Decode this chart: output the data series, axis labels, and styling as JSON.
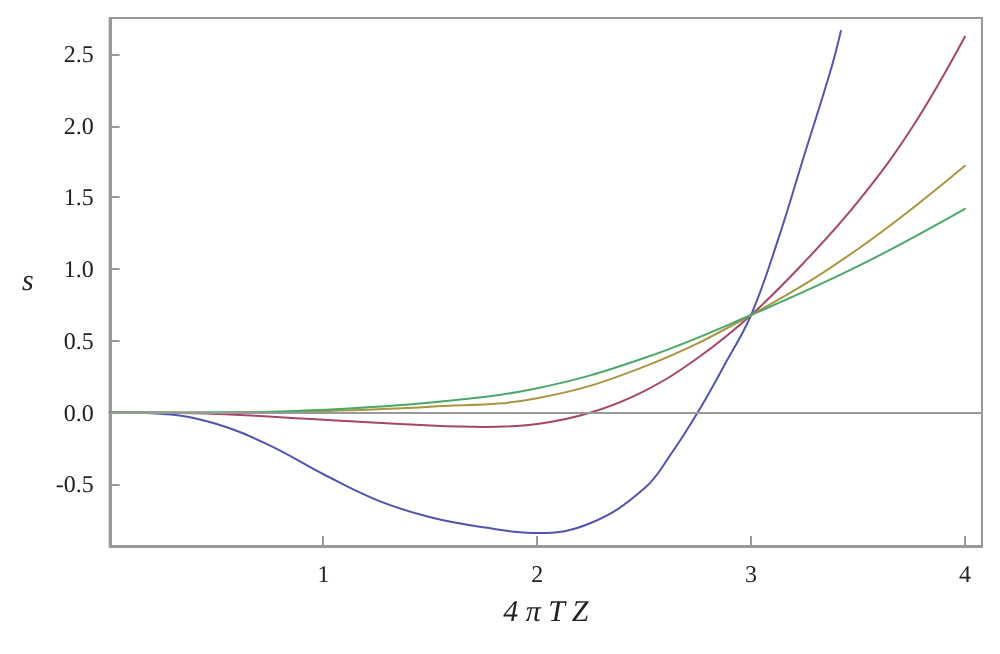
{
  "chart_data": {
    "type": "line",
    "xlabel": "4 π T Z",
    "ylabel": "s",
    "xlim": [
      0,
      4.08
    ],
    "ylim": [
      -0.93,
      2.75
    ],
    "xticks": [
      1,
      2,
      3,
      4
    ],
    "yticks": [
      {
        "value": -0.5,
        "label": "-0.5"
      },
      {
        "value": 0,
        "label": "0.0"
      },
      {
        "value": 0.5,
        "label": "0.5"
      },
      {
        "value": 1,
        "label": "1.0"
      },
      {
        "value": 1.5,
        "label": "1.5"
      },
      {
        "value": 2,
        "label": "2.0"
      },
      {
        "value": 2.5,
        "label": "2.5"
      }
    ],
    "grid": false,
    "marker": "none",
    "line_style": "solid",
    "ref_lines": [
      {
        "axis": "y",
        "value": 0,
        "color": "#999999"
      }
    ],
    "series": [
      {
        "color": "#5353b3",
        "x": [
          0,
          0.25,
          0.5,
          0.75,
          1,
          1.25,
          1.5,
          1.75,
          2,
          2.25,
          2.5,
          2.625,
          2.75,
          2.875,
          3,
          3.125,
          3.25,
          3.375,
          3.42
        ],
        "values": [
          0,
          -0.01,
          -0.08,
          -0.23,
          -0.43,
          -0.61,
          -0.73,
          -0.8,
          -0.84,
          -0.77,
          -0.53,
          -0.29,
          0,
          0.33,
          0.68,
          1.2,
          1.8,
          2.4,
          2.66
        ]
      },
      {
        "color": "#a8456d",
        "x": [
          0,
          0.5,
          1,
          1.5,
          1.75,
          2,
          2.25,
          2.5,
          2.75,
          3,
          3.25,
          3.5,
          3.75,
          4
        ],
        "values": [
          0,
          -0.01,
          -0.05,
          -0.09,
          -0.1,
          -0.08,
          0,
          0.15,
          0.38,
          0.68,
          1.05,
          1.47,
          1.98,
          2.62
        ]
      },
      {
        "color": "#a89640",
        "x": [
          0,
          0.5,
          1,
          1.5,
          2,
          2.5,
          3,
          3.5,
          4
        ],
        "values": [
          0,
          0,
          0.01,
          0.04,
          0.1,
          0.32,
          0.68,
          1.14,
          1.72
        ]
      },
      {
        "color": "#4ca86a",
        "x": [
          0,
          0.5,
          1,
          1.5,
          2,
          2.5,
          3,
          3.5,
          4
        ],
        "values": [
          0,
          0,
          0.02,
          0.07,
          0.17,
          0.38,
          0.68,
          1.02,
          1.42
        ]
      }
    ]
  }
}
